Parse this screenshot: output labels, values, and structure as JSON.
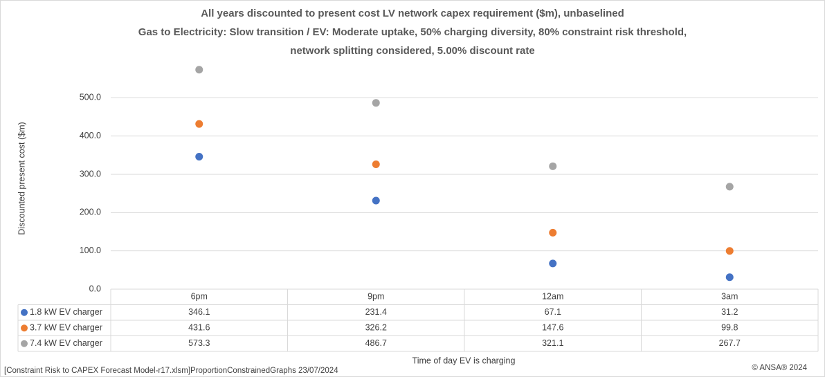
{
  "chart_data": {
    "type": "scatter",
    "title": [
      "All years discounted to present cost LV network capex requirement ($m), unbaselined",
      "Gas to Electricity: Slow transition / EV: Moderate uptake, 50% charging diversity, 80% constraint risk threshold,",
      "network splitting considered, 5.00% discount rate"
    ],
    "y_label": "Discounted present cost ($m)",
    "x_label": "Time of day EV is charging",
    "categories": [
      "6pm",
      "9pm",
      "12am",
      "3am"
    ],
    "series": [
      {
        "name": "1.8 kW EV charger",
        "color": "#4472c4",
        "values": [
          346.1,
          231.4,
          67.1,
          31.2
        ]
      },
      {
        "name": "3.7 kW EV charger",
        "color": "#ed7d31",
        "values": [
          431.6,
          326.2,
          147.6,
          99.8
        ]
      },
      {
        "name": "7.4 kW EV charger",
        "color": "#a5a5a5",
        "values": [
          573.3,
          486.7,
          321.1,
          267.7
        ]
      }
    ],
    "ylim": [
      0,
      600
    ],
    "yticks": [
      {
        "value": 0,
        "label": "0.0"
      },
      {
        "value": 100,
        "label": "100.0"
      },
      {
        "value": 200,
        "label": "200.0"
      },
      {
        "value": 300,
        "label": "300.0"
      },
      {
        "value": 400,
        "label": "400.0"
      },
      {
        "value": 500,
        "label": "500.0"
      }
    ],
    "grid": true,
    "source": "[Constraint Risk to CAPEX Forecast Model-r17.xlsm]ProportionConstrainedGraphs 23/07/2024",
    "copyright": "© ANSA® 2024"
  }
}
